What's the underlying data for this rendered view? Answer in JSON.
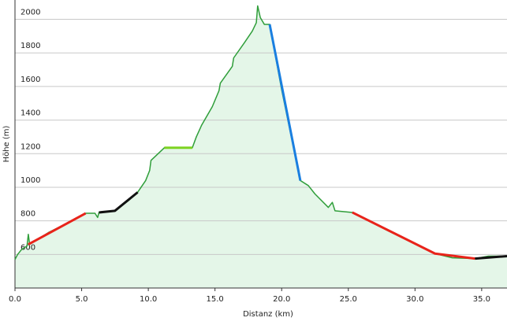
{
  "chart_data": {
    "type": "line",
    "xlabel": "Distanz  (km)",
    "ylabel": "Höhe (m)",
    "xlim": [
      0,
      36.9
    ],
    "ylim": [
      400,
      2115
    ],
    "xticks": [
      {
        "value": 0,
        "label": "0.0"
      },
      {
        "value": 5,
        "label": "5.0"
      },
      {
        "value": 10,
        "label": "10.0"
      },
      {
        "value": 15,
        "label": "15.0"
      },
      {
        "value": 20,
        "label": "20.0"
      },
      {
        "value": 25,
        "label": "25.0"
      },
      {
        "value": 30,
        "label": "30.0"
      },
      {
        "value": 35,
        "label": "35.0"
      }
    ],
    "yticks": [
      600,
      800,
      1000,
      1200,
      1400,
      1600,
      1800,
      2000
    ],
    "grid": true,
    "fill": "#e4f6e8",
    "series": [
      {
        "color": "#2f9e3a",
        "width": 1.5,
        "x": [
          0,
          0.2,
          0.5,
          0.9,
          1.0,
          1.1,
          2.5,
          4.0,
          5.3,
          6.0,
          6.2,
          6.3,
          7.5,
          8.5,
          9.2,
          9.8,
          10.1,
          10.2,
          10.6,
          11.2,
          13.3,
          13.6,
          14.0,
          14.8,
          15.3,
          15.4,
          16.3,
          16.4,
          17.2,
          17.8,
          18.1,
          18.2,
          18.4,
          18.7,
          19.1,
          20.0,
          21.4,
          22.0,
          22.5,
          23.5,
          23.8,
          24.0,
          25.3,
          28.0,
          31.5,
          32.8,
          34.5,
          35.5,
          36.9
        ],
        "values": [
          570,
          600,
          630,
          650,
          720,
          660,
          730,
          790,
          845,
          845,
          820,
          850,
          860,
          920,
          970,
          1040,
          1100,
          1160,
          1190,
          1235,
          1235,
          1300,
          1370,
          1480,
          1575,
          1620,
          1720,
          1770,
          1860,
          1930,
          1980,
          2080,
          2010,
          1970,
          1970,
          1580,
          1040,
          1010,
          960,
          880,
          910,
          860,
          850,
          740,
          605,
          580,
          575,
          590,
          590
        ]
      },
      {
        "color": "#e8231a",
        "width": 3,
        "x": [
          1.0,
          5.3
        ],
        "values": [
          660,
          845
        ]
      },
      {
        "color": "#111111",
        "width": 3,
        "x": [
          6.3,
          7.5,
          9.2
        ],
        "values": [
          850,
          860,
          970
        ]
      },
      {
        "color": "#7ed321",
        "width": 3,
        "x": [
          11.2,
          13.3
        ],
        "values": [
          1235,
          1235
        ]
      },
      {
        "color": "#1a7fe0",
        "width": 3,
        "x": [
          19.1,
          21.4
        ],
        "values": [
          1970,
          1040
        ]
      },
      {
        "color": "#e8231a",
        "width": 3,
        "x": [
          25.3,
          31.5,
          34.5
        ],
        "values": [
          850,
          605,
          575
        ]
      },
      {
        "color": "#111111",
        "width": 3,
        "x": [
          34.5,
          36.9
        ],
        "values": [
          575,
          590
        ]
      }
    ]
  }
}
